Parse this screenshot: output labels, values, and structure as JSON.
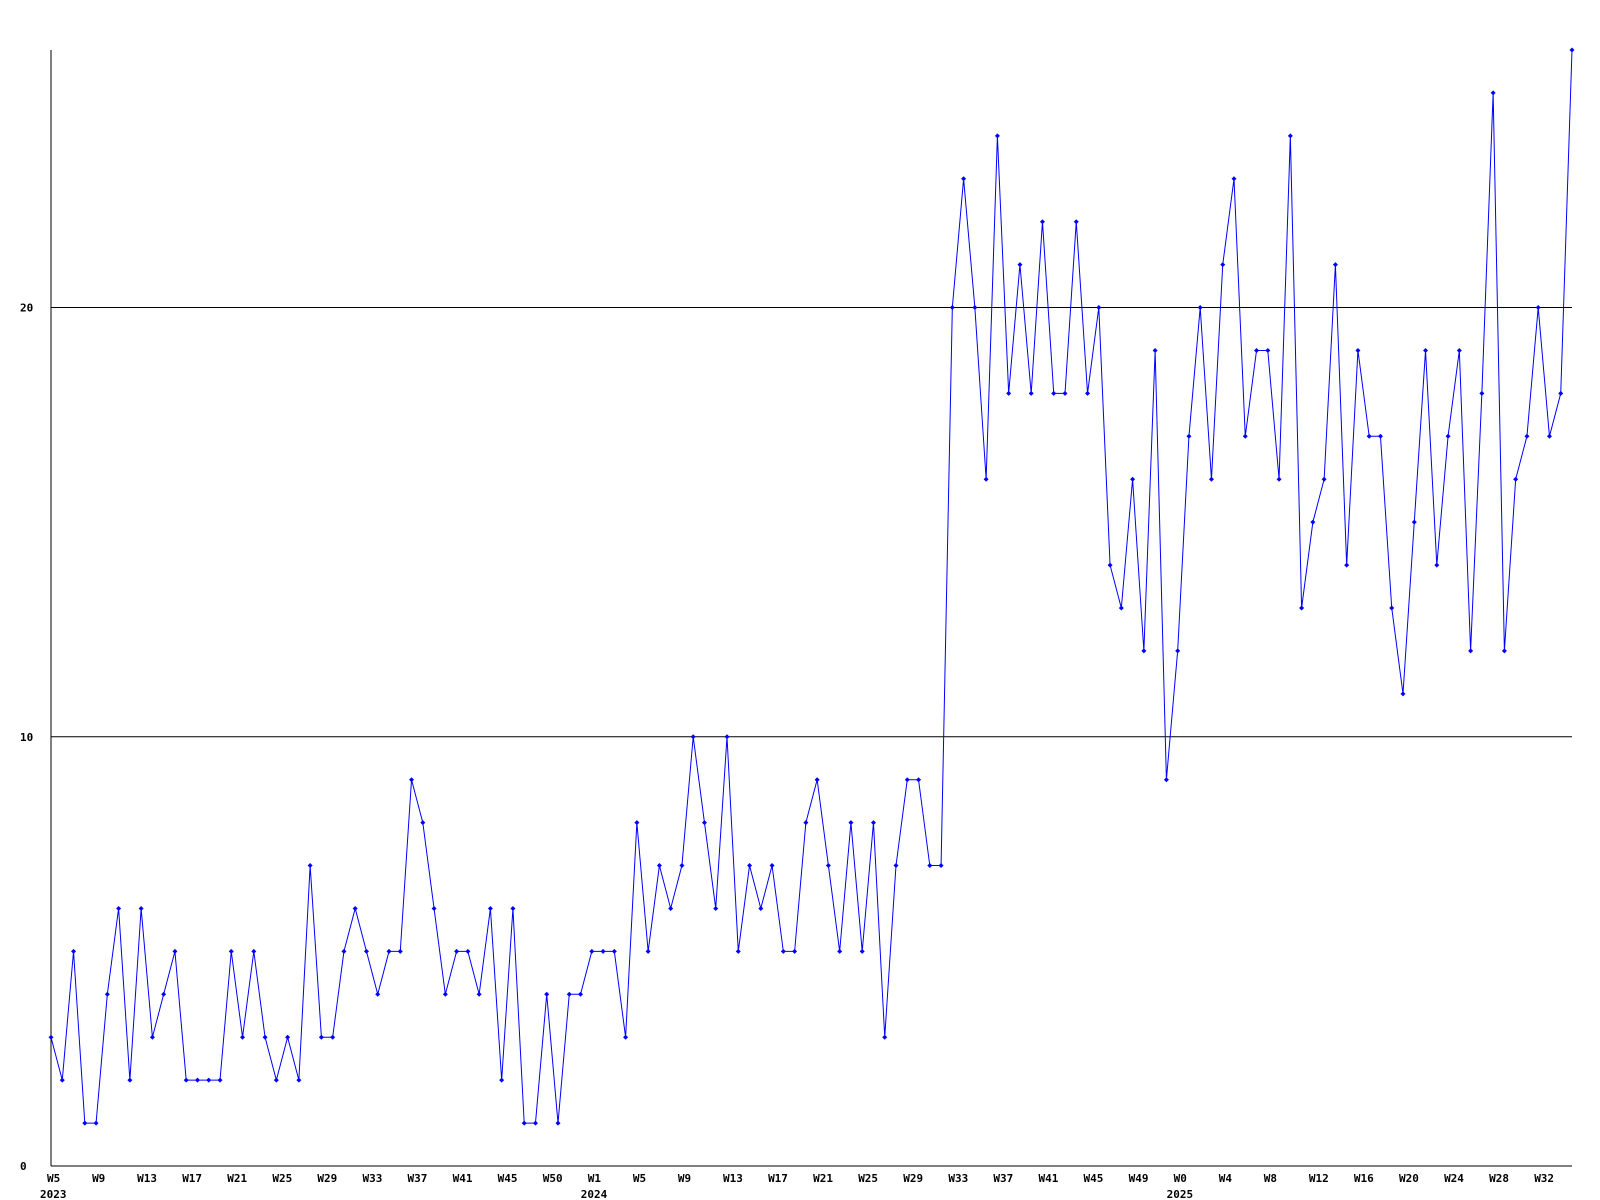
{
  "chart_data": {
    "type": "line",
    "categories": [
      "W5",
      null,
      null,
      null,
      "W9",
      null,
      null,
      null,
      "W13",
      null,
      null,
      null,
      "W17",
      null,
      null,
      null,
      "W21",
      null,
      null,
      null,
      "W25",
      null,
      null,
      null,
      "W29",
      null,
      null,
      null,
      "W33",
      null,
      null,
      null,
      "W37",
      null,
      null,
      null,
      "W41",
      null,
      null,
      null,
      "W45",
      null,
      null,
      null,
      "W50",
      null,
      null,
      null,
      "W1",
      null,
      null,
      null,
      "W5",
      null,
      null,
      null,
      "W9",
      null,
      null,
      null,
      "W13",
      null,
      null,
      null,
      "W17",
      null,
      null,
      null,
      "W21",
      null,
      null,
      null,
      "W25",
      null,
      null,
      null,
      "W29",
      null,
      null,
      null,
      "W33",
      null,
      null,
      null,
      "W37",
      null,
      null,
      null,
      "W41",
      null,
      null,
      null,
      "W45",
      null,
      null,
      null,
      "W49",
      null,
      null,
      null,
      "W0",
      null,
      null,
      null,
      "W4",
      null,
      null,
      null,
      "W8",
      null,
      null,
      null,
      "W12",
      null,
      null,
      null,
      "W16",
      null,
      null,
      null,
      "W20",
      null,
      null,
      null,
      "W24",
      null,
      null,
      null,
      "W28",
      null,
      null,
      null,
      "W32",
      null,
      null,
      null
    ],
    "year_labels": [
      "2023",
      null,
      null,
      null,
      null,
      null,
      null,
      null,
      null,
      null,
      null,
      null,
      null,
      null,
      null,
      null,
      null,
      null,
      null,
      null,
      null,
      null,
      null,
      null,
      null,
      null,
      null,
      null,
      null,
      null,
      null,
      null,
      null,
      null,
      null,
      null,
      null,
      null,
      null,
      null,
      null,
      null,
      null,
      null,
      null,
      null,
      null,
      null,
      "2024",
      null,
      null,
      null,
      null,
      null,
      null,
      null,
      null,
      null,
      null,
      null,
      null,
      null,
      null,
      null,
      null,
      null,
      null,
      null,
      null,
      null,
      null,
      null,
      null,
      null,
      null,
      null,
      null,
      null,
      null,
      null,
      null,
      null,
      null,
      null,
      null,
      null,
      null,
      null,
      null,
      null,
      null,
      null,
      null,
      null,
      null,
      null,
      null,
      null,
      null,
      null,
      "2025",
      null,
      null,
      null,
      null,
      null,
      null,
      null,
      null,
      null,
      null,
      null,
      null,
      null,
      null,
      null,
      null,
      null,
      null,
      null,
      null,
      null,
      null,
      null,
      null,
      null,
      null,
      null,
      null,
      null,
      null,
      null,
      null,
      null,
      null,
      null
    ],
    "series": [
      {
        "color": "#0000ff",
        "values": [
          3,
          2,
          5,
          1,
          1,
          4,
          6,
          2,
          6,
          3,
          4,
          5,
          2,
          2,
          2,
          2,
          5,
          3,
          5,
          3,
          2,
          3,
          2,
          7,
          3,
          3,
          5,
          6,
          5,
          4,
          5,
          5,
          9,
          8,
          6,
          4,
          5,
          5,
          4,
          6,
          2,
          6,
          1,
          1,
          4,
          1,
          4,
          4,
          5,
          5,
          5,
          3,
          8,
          5,
          7,
          6,
          7,
          10,
          8,
          6,
          10,
          5,
          7,
          6,
          7,
          5,
          5,
          8,
          9,
          7,
          5,
          8,
          5,
          8,
          3,
          7,
          9,
          9,
          7,
          7,
          20,
          23,
          20,
          16,
          24,
          18,
          21,
          18,
          22,
          18,
          18,
          22,
          18,
          20,
          14,
          13,
          16,
          12,
          19,
          9,
          12,
          17,
          20,
          16,
          21,
          23,
          17,
          19,
          19,
          16,
          24,
          13,
          15,
          16,
          21,
          14,
          19,
          17,
          17,
          13,
          11,
          15,
          19,
          14,
          17,
          19,
          12,
          18,
          25,
          12,
          16,
          17,
          20,
          17,
          18,
          26
        ]
      }
    ],
    "ylim": [
      0,
      26
    ],
    "yticks": [
      0,
      10,
      20
    ],
    "grid": true
  }
}
